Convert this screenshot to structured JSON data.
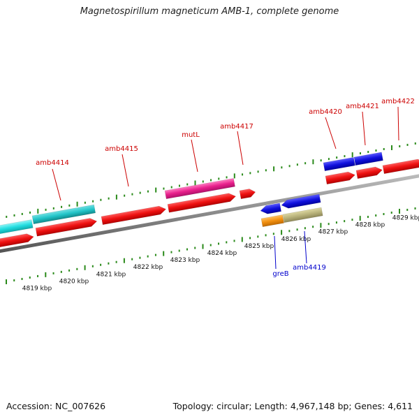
{
  "title": "Magnetospirillum magneticum AMB-1, complete genome",
  "accession": "Accession: NC_007626",
  "summary": "Topology: circular; Length: 4,967,148 bp; Genes: 4,611",
  "colors": {
    "backbone": "#8a8a8a",
    "tick": "#2a8a1a",
    "label_red": "#cc0000",
    "label_blue": "#0000cc"
  },
  "scale_labels": [
    "4819 kbp",
    "4820 kbp",
    "4821 kbp",
    "4822 kbp",
    "4823 kbp",
    "4824 kbp",
    "4825 kbp",
    "4826 kbp",
    "4827 kbp",
    "4828 kbp",
    "4829 kbp"
  ],
  "gene_labels": [
    {
      "name": "amb4414",
      "color": "#cc0000"
    },
    {
      "name": "amb4415",
      "color": "#cc0000"
    },
    {
      "name": "mutL",
      "color": "#cc0000"
    },
    {
      "name": "amb4417",
      "color": "#cc0000"
    },
    {
      "name": "amb4420",
      "color": "#cc0000"
    },
    {
      "name": "amb4421",
      "color": "#cc0000"
    },
    {
      "name": "amb4422",
      "color": "#cc0000"
    },
    {
      "name": "greB",
      "color": "#0000cc"
    },
    {
      "name": "amb4419",
      "color": "#0000cc"
    }
  ],
  "features": [
    {
      "name": "cyan-feature-1",
      "color": "#22dde0"
    },
    {
      "name": "cyan-feature-2",
      "color": "#22c4c8"
    },
    {
      "name": "magenta-feature",
      "color": "#e8208c"
    },
    {
      "name": "red-cds",
      "color": "#ee1111"
    },
    {
      "name": "blue-cds",
      "color": "#1111dd"
    },
    {
      "name": "orange-feature",
      "color": "#f29010"
    },
    {
      "name": "khaki-feature",
      "color": "#b8b27a"
    }
  ]
}
